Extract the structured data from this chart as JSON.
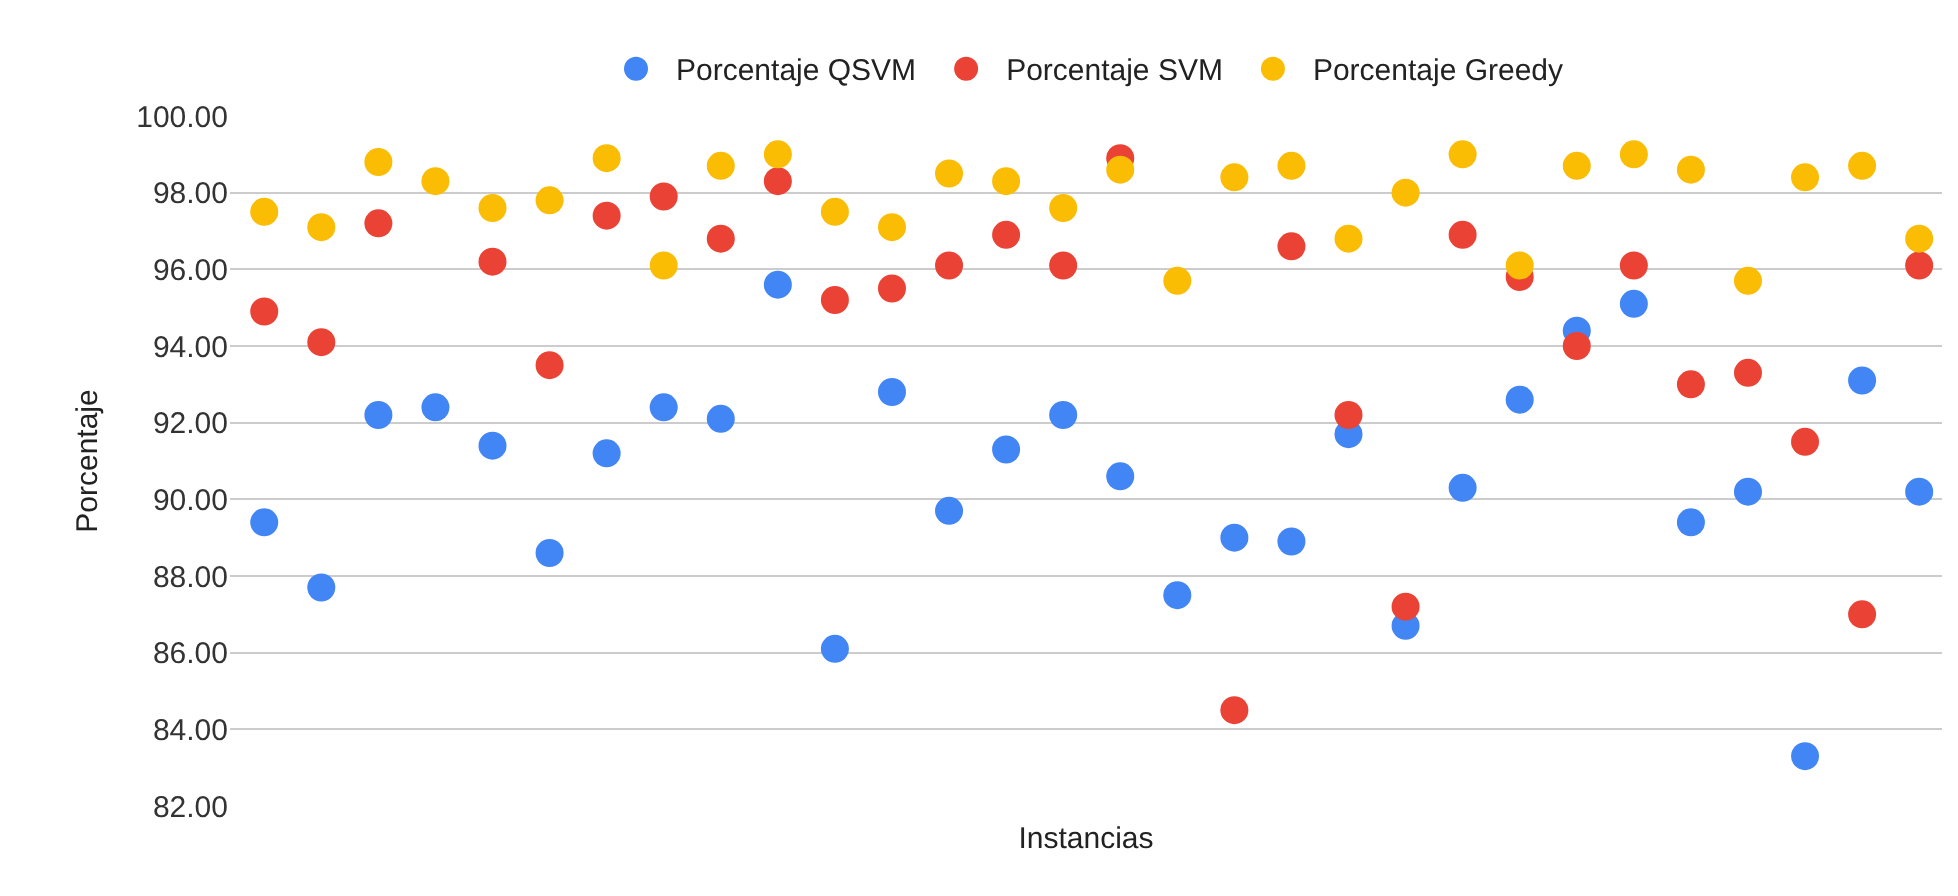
{
  "chart_data": {
    "type": "scatter",
    "xlabel": "Instancias",
    "ylabel": "Porcentaje",
    "categories": [
      null,
      null,
      null,
      null,
      null,
      null,
      null,
      null,
      null,
      null,
      null,
      null,
      null,
      null,
      null,
      null,
      null,
      null,
      null,
      null,
      null,
      null,
      null,
      null,
      null,
      null,
      null,
      null,
      null,
      null
    ],
    "series": [
      {
        "name": "Porcentaje QSVM",
        "color": "#4285f4",
        "values": [
          89.4,
          87.7,
          92.2,
          92.4,
          91.4,
          88.6,
          91.2,
          92.4,
          92.1,
          95.6,
          86.1,
          92.8,
          89.7,
          91.3,
          92.2,
          90.6,
          87.5,
          89.0,
          88.9,
          91.7,
          86.7,
          90.3,
          92.6,
          94.4,
          95.1,
          89.4,
          90.2,
          83.3,
          93.1,
          90.2
        ]
      },
      {
        "name": "Porcentaje SVM",
        "color": "#ea4335",
        "values": [
          94.9,
          94.1,
          97.2,
          null,
          96.2,
          93.5,
          97.4,
          97.9,
          96.8,
          98.3,
          95.2,
          95.5,
          96.1,
          96.9,
          96.1,
          98.9,
          null,
          84.5,
          96.6,
          92.2,
          87.2,
          96.9,
          95.8,
          94.0,
          96.1,
          93.0,
          93.3,
          91.5,
          87.0,
          96.1
        ]
      },
      {
        "name": "Porcentaje Greedy",
        "color": "#fbbc04",
        "values": [
          97.5,
          97.1,
          98.8,
          98.3,
          97.6,
          97.8,
          98.9,
          96.1,
          98.7,
          99.0,
          97.5,
          97.1,
          98.5,
          98.3,
          97.6,
          98.6,
          95.7,
          98.4,
          98.7,
          96.8,
          98.0,
          99.0,
          96.1,
          98.7,
          99.0,
          98.6,
          95.7,
          98.4,
          98.7,
          96.8
        ]
      }
    ],
    "ylim": [
      82,
      100
    ],
    "yticks": [
      {
        "value": 82,
        "label": "82.00"
      },
      {
        "value": 84,
        "label": "84.00"
      },
      {
        "value": 86,
        "label": "86.00"
      },
      {
        "value": 88,
        "label": "88.00"
      },
      {
        "value": 90,
        "label": "90.00"
      },
      {
        "value": 92,
        "label": "92.00"
      },
      {
        "value": 94,
        "label": "94.00"
      },
      {
        "value": 96,
        "label": "96.00"
      },
      {
        "value": 98,
        "label": "98.00"
      },
      {
        "value": 100,
        "label": "100.00"
      }
    ],
    "grid": "y",
    "legend": "top",
    "marker": "circle"
  }
}
